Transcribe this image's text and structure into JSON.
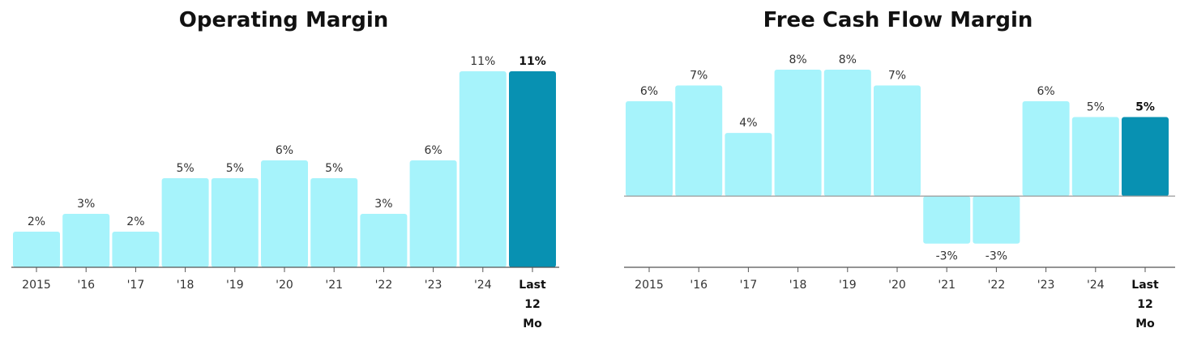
{
  "chart_data": [
    {
      "type": "bar",
      "title": "Operating Margin",
      "categories": [
        "2015",
        "'16",
        "'17",
        "'18",
        "'19",
        "'20",
        "'21",
        "'22",
        "'23",
        "'24",
        "Last 12 Mo"
      ],
      "values": [
        2,
        3,
        2,
        5,
        5,
        6,
        5,
        3,
        6,
        11,
        11
      ],
      "labels": [
        "2%",
        "3%",
        "2%",
        "5%",
        "5%",
        "6%",
        "5%",
        "3%",
        "6%",
        "11%",
        "11%"
      ],
      "highlight_index": 10,
      "ylim": [
        0,
        11
      ],
      "grid": false,
      "colors": {
        "bar": "#a6f3fb",
        "highlight": "#0891b2",
        "axis": "#555555"
      }
    },
    {
      "type": "bar",
      "title": "Free Cash Flow Margin",
      "categories": [
        "2015",
        "'16",
        "'17",
        "'18",
        "'19",
        "'20",
        "'21",
        "'22",
        "'23",
        "'24",
        "Last 12 Mo"
      ],
      "values": [
        6,
        7,
        4,
        8,
        8,
        7,
        -3,
        -3,
        6,
        5,
        5
      ],
      "labels": [
        "6%",
        "7%",
        "4%",
        "8%",
        "8%",
        "7%",
        "-3%",
        "-3%",
        "6%",
        "5%",
        "5%"
      ],
      "highlight_index": 10,
      "ylim": [
        -4.5,
        8
      ],
      "grid": false,
      "colors": {
        "bar": "#a6f3fb",
        "highlight": "#0891b2",
        "axis": "#555555"
      }
    }
  ]
}
